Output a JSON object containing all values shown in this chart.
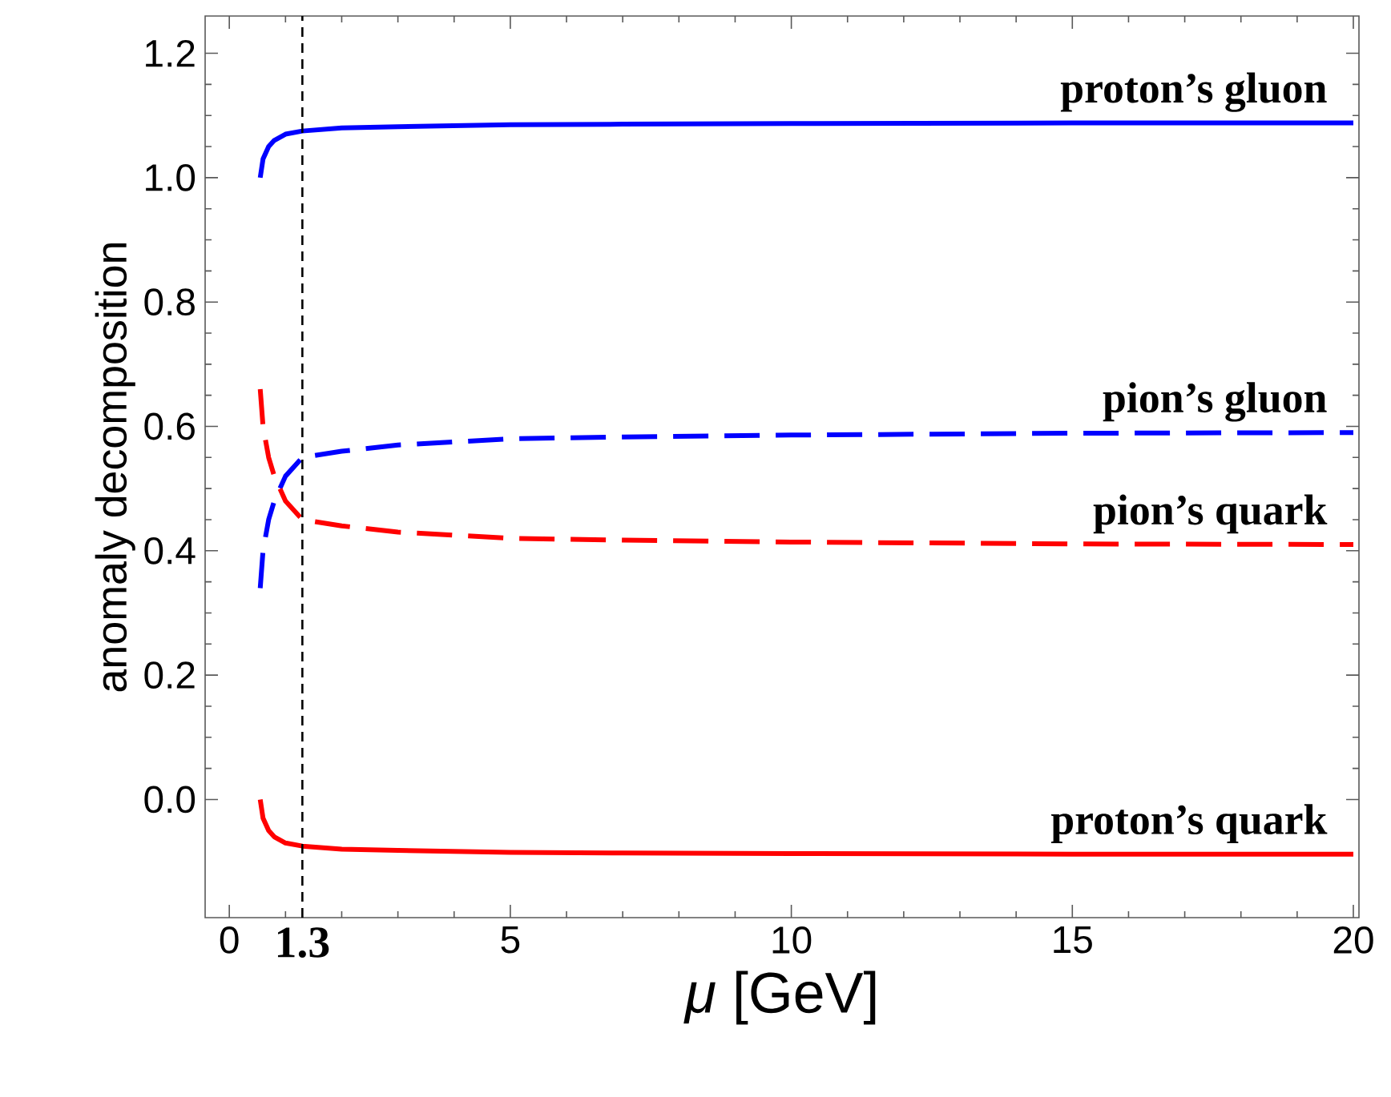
{
  "chart_data": {
    "type": "line",
    "xlabel": "*μ*    [GeV]",
    "ylabel": "anomaly decomposition",
    "xlim": [
      -0.43,
      20.1
    ],
    "ylim": [
      -0.19,
      1.26
    ],
    "xticks": [
      0,
      5,
      10,
      15,
      20
    ],
    "yticks": [
      {
        "value": 0,
        "label": "0.0"
      },
      0.2,
      0.4,
      0.6,
      0.8,
      {
        "value": 1,
        "label": "1.0"
      },
      1.2
    ],
    "grid": false,
    "legend": false,
    "marker": "none",
    "series": [
      {
        "name": "proton’s gluon",
        "color": "#0000ff",
        "line_style": "solid",
        "x": [
          0.55,
          0.6,
          0.7,
          0.8,
          0.9,
          1.0,
          1.3,
          2,
          3,
          5,
          7,
          10,
          15,
          20
        ],
        "values": [
          1.0,
          1.03,
          1.05,
          1.06,
          1.065,
          1.07,
          1.075,
          1.08,
          1.082,
          1.085,
          1.086,
          1.087,
          1.088,
          1.088
        ]
      },
      {
        "name": "pion’s gluon",
        "color": "#0000ff",
        "line_style": "dashed",
        "x": [
          0.55,
          0.6,
          0.7,
          0.8,
          0.9,
          1.0,
          1.3,
          2,
          3,
          5,
          7,
          10,
          15,
          20
        ],
        "values": [
          0.34,
          0.4,
          0.45,
          0.48,
          0.5,
          0.52,
          0.55,
          0.56,
          0.57,
          0.58,
          0.583,
          0.586,
          0.589,
          0.59
        ]
      },
      {
        "name": "pion’s quark",
        "color": "#ff0000",
        "line_style": "dashed",
        "x": [
          0.55,
          0.6,
          0.7,
          0.8,
          0.9,
          1.0,
          1.3,
          2,
          3,
          5,
          7,
          10,
          15,
          20
        ],
        "values": [
          0.66,
          0.6,
          0.55,
          0.52,
          0.5,
          0.48,
          0.45,
          0.44,
          0.43,
          0.42,
          0.417,
          0.414,
          0.411,
          0.41
        ]
      },
      {
        "name": "proton’s quark",
        "color": "#ff0000",
        "line_style": "solid",
        "x": [
          0.55,
          0.6,
          0.7,
          0.8,
          0.9,
          1.0,
          1.3,
          2,
          3,
          5,
          7,
          10,
          15,
          20
        ],
        "values": [
          0.0,
          -0.03,
          -0.05,
          -0.06,
          -0.065,
          -0.07,
          -0.075,
          -0.08,
          -0.082,
          -0.085,
          -0.086,
          -0.087,
          -0.088,
          -0.088
        ]
      }
    ],
    "ref_lines": [
      {
        "axis": "x",
        "value": 1.3,
        "label": "1.3",
        "color": "#000000",
        "line_style": "dashed"
      }
    ]
  }
}
